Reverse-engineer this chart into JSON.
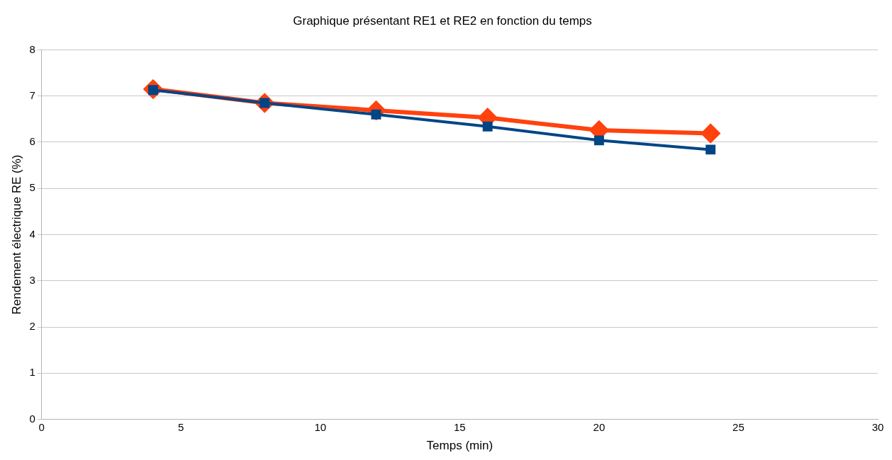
{
  "chart_data": {
    "type": "line",
    "title": "Graphique présentant RE1 et RE2 en fonction du temps",
    "xlabel": "Temps (min)",
    "ylabel": "Rendement électrique RE (%)",
    "x": [
      4,
      8,
      12,
      16,
      20,
      24
    ],
    "series": [
      {
        "color": "#ff420e",
        "marker": "diamond",
        "values": [
          7.15,
          6.85,
          6.69,
          6.53,
          6.26,
          6.19
        ]
      },
      {
        "color": "#004586",
        "marker": "square",
        "values": [
          7.13,
          6.85,
          6.6,
          6.34,
          6.04,
          5.84
        ]
      }
    ],
    "xlim": [
      0,
      30
    ],
    "xticks": [
      0,
      5,
      10,
      15,
      20,
      25,
      30
    ],
    "ylim": [
      0,
      8
    ],
    "yticks": [
      0,
      1,
      2,
      3,
      4,
      5,
      6,
      7,
      8
    ],
    "grid": "y",
    "legend": false
  }
}
